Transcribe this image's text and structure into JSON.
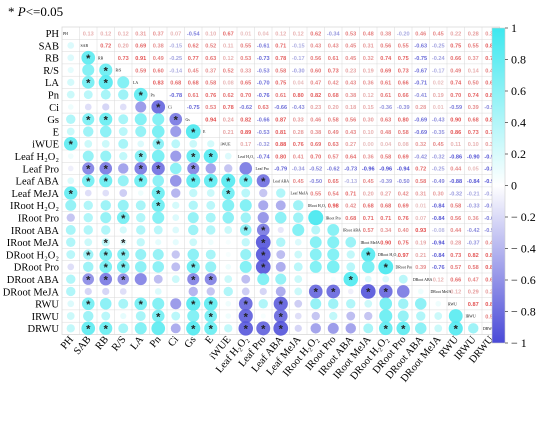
{
  "note": {
    "star": "*",
    "p": "P",
    "rest": "<=0.05"
  },
  "chart_data": {
    "type": "heatmap",
    "variables": [
      "PH",
      "SAB",
      "RB",
      "R/S",
      "LA",
      "Pn",
      "Ci",
      "Gs",
      "E",
      "iWUE",
      "Leaf H₂O₂",
      "Leaf Pro",
      "Leaf ABA",
      "Leaf MeJA",
      "IRoot H₂O₂",
      "IRoot Pro",
      "IRoot ABA",
      "IRoot MeJA",
      "DRoot H₂O₂",
      "DRoot Pro",
      "DRoot ABA",
      "DRoot MeJA",
      "RWU",
      "IRWU",
      "DRWU"
    ],
    "diag_labels": [
      "PH",
      "SAB",
      "RB",
      "R/S",
      "LA",
      "Pn",
      "Ci",
      "Gs",
      "E",
      "iWUE",
      "Leaf H₂O₂",
      "Leaf Pro",
      "Leaf ABA",
      "Leaf MeJA",
      "IRoot H₂O₂",
      "IRoot Pro",
      "IRoot ABA",
      "IRoot MeJA",
      "DRoot H₂O₂",
      "DRoot Pro",
      "DRoot ABA",
      "DRoot MeJA",
      "RWU",
      "IRWU",
      "DRWU"
    ],
    "upper_values": {
      "0": {
        "1": 0.13,
        "2": 0.12,
        "3": 0.12,
        "4": 0.31,
        "5": 0.37,
        "6": 0.07,
        "7": -0.54,
        "8": 0.1,
        "9": 0.67,
        "10": 0.01,
        "11": 0.04,
        "12": 0.12,
        "13": 0.12,
        "14": 0.62,
        "15": -0.34,
        "16": 0.53,
        "17": 0.48,
        "18": 0.38,
        "19": -0.2,
        "20": 0.46,
        "21": 0.45,
        "22": 0.22,
        "23": 0.28,
        "24": 0.35
      },
      "1": {
        "2": 0.72,
        "3": 0.2,
        "4": 0.69,
        "5": 0.38,
        "6": -0.15,
        "7": 0.62,
        "8": 0.52,
        "9": 0.11,
        "10": 0.55,
        "11": -0.61,
        "12": 0.71,
        "13": -0.15,
        "14": 0.43,
        "15": 0.43,
        "16": 0.45,
        "17": 0.31,
        "18": 0.56,
        "19": 0.55,
        "20": -0.63,
        "21": -0.25,
        "22": 0.75,
        "23": 0.55,
        "24": 0.85
      },
      "2": {
        "3": 0.73,
        "4": 0.91,
        "5": 0.49,
        "6": -0.25,
        "7": 0.77,
        "8": 0.63,
        "9": 0.12,
        "10": 0.53,
        "11": -0.73,
        "12": 0.78,
        "13": -0.17,
        "14": 0.56,
        "15": 0.61,
        "16": 0.45,
        "17": 0.32,
        "18": 0.74,
        "19": 0.75,
        "20": -0.75,
        "21": -0.24,
        "22": 0.66,
        "23": 0.37,
        "24": 0.78
      },
      "3": {
        "4": 0.59,
        "5": 0.6,
        "6": -0.14,
        "7": 0.45,
        "8": 0.37,
        "9": 0.52,
        "10": 0.33,
        "11": -0.53,
        "12": 0.58,
        "13": -0.3,
        "14": 0.6,
        "15": 0.73,
        "16": 0.23,
        "17": 0.19,
        "18": 0.69,
        "19": 0.73,
        "20": -0.67,
        "21": -0.17,
        "22": 0.49,
        "23": 0.14,
        "24": 0.49
      },
      "4": {
        "5": 0.83,
        "6": 0.68,
        "7": 0.68,
        "8": 0.58,
        "9": 0.08,
        "10": 0.65,
        "11": -0.7,
        "12": 0.75,
        "13": 0.04,
        "14": 0.47,
        "15": 0.42,
        "16": 0.43,
        "17": 0.36,
        "18": 0.61,
        "19": 0.66,
        "20": -0.71,
        "21": 0.02,
        "22": 0.74,
        "23": 0.5,
        "24": 0.69
      },
      "5": {
        "6": -0.78,
        "7": 0.61,
        "8": 0.76,
        "9": 0.62,
        "10": 0.7,
        "11": -0.76,
        "12": 0.61,
        "13": 0.8,
        "14": 0.82,
        "15": 0.68,
        "16": 0.38,
        "17": 0.12,
        "18": 0.61,
        "19": 0.66,
        "20": -0.41,
        "21": 0.19,
        "22": 0.7,
        "23": 0.74,
        "24": 0.83
      },
      "6": {
        "7": -0.75,
        "8": 0.53,
        "9": 0.78,
        "10": -0.62,
        "11": 0.63,
        "12": -0.66,
        "13": -0.43,
        "14": 0.23,
        "15": 0.2,
        "16": 0.18,
        "17": 0.15,
        "18": -0.36,
        "19": -0.39,
        "20": 0.28,
        "21": 0.01,
        "22": -0.59,
        "23": 0.39,
        "24": -0.5
      },
      "7": {
        "8": 0.94,
        "9": 0.24,
        "10": 0.82,
        "11": -0.66,
        "12": 0.87,
        "13": 0.33,
        "14": 0.46,
        "15": 0.58,
        "16": 0.56,
        "17": 0.3,
        "18": 0.63,
        "19": 0.8,
        "20": -0.69,
        "21": -0.43,
        "22": 0.9,
        "23": 0.68,
        "24": 0.89
      },
      "8": {
        "9": 0.21,
        "10": 0.89,
        "11": -0.53,
        "12": 0.81,
        "13": 0.28,
        "14": 0.38,
        "15": 0.49,
        "16": 0.43,
        "17": 0.1,
        "18": 0.48,
        "19": 0.58,
        "20": -0.69,
        "21": -0.35,
        "22": 0.86,
        "23": 0.73,
        "24": 0.78
      },
      "9": {
        "10": 0.17,
        "11": -0.32,
        "12": 0.88,
        "13": 0.76,
        "14": 0.69,
        "15": 0.63,
        "16": 0.27,
        "17": 0.0,
        "18": 0.04,
        "19": 0.08,
        "20": 0.32,
        "21": 0.45,
        "22": 0.11,
        "23": 0.1,
        "24": 0.34
      },
      "10": {
        "11": -0.74,
        "12": 0.8,
        "13": 0.41,
        "14": 0.7,
        "15": 0.57,
        "16": 0.64,
        "17": 0.36,
        "18": 0.58,
        "19": 0.69,
        "20": -0.42,
        "21": -0.32,
        "22": -0.86,
        "23": -0.9,
        "24": -0.93
      },
      "11": {
        "12": -0.79,
        "13": -0.34,
        "14": -0.52,
        "15": -0.62,
        "16": -0.73,
        "17": -0.96,
        "18": -0.96,
        "19": -0.94,
        "20": 0.72,
        "21": -0.25,
        "22": 0.44,
        "23": 0.05,
        "24": -0.88
      },
      "12": {
        "13": 0.45,
        "14": -0.5,
        "15": 0.65,
        "16": -0.13,
        "17": 0.45,
        "18": -0.39,
        "19": -0.5,
        "20": 0.58,
        "21": -0.49,
        "22": -0.88,
        "23": -0.84,
        "24": -0.94
      },
      "13": {
        "14": 0.55,
        "15": 0.54,
        "16": 0.71,
        "17": 0.2,
        "18": 0.27,
        "19": 0.42,
        "20": 0.31,
        "21": 0.3,
        "22": -0.32,
        "23": -0.21,
        "24": -0.27
      },
      "14": {
        "15": 0.98,
        "16": 0.42,
        "17": 0.68,
        "18": 0.68,
        "19": 0.69,
        "20": 0.01,
        "21": -0.84,
        "22": 0.58,
        "23": -0.33,
        "24": -0.57
      },
      "15": {
        "16": 0.68,
        "17": 0.71,
        "18": 0.71,
        "19": 0.76,
        "20": 0.07,
        "21": -0.84,
        "22": 0.56,
        "23": 0.36,
        "24": -0.62
      },
      "16": {
        "17": 0.57,
        "18": 0.34,
        "19": 0.4,
        "20": 0.93,
        "21": -0.08,
        "22": 0.44,
        "23": -0.42,
        "24": -0.53
      },
      "17": {
        "18": 0.9,
        "19": 0.75,
        "20": 0.19,
        "21": -0.94,
        "22": 0.28,
        "23": -0.37,
        "24": 0.48
      },
      "18": {
        "19": 0.97,
        "20": 0.21,
        "21": -0.84,
        "22": 0.73,
        "23": 0.82,
        "24": 0.83
      },
      "19": {
        "20": 0.39,
        "21": -0.76,
        "22": 0.57,
        "23": 0.58,
        "24": 0.86
      },
      "20": {
        "21": 0.12,
        "22": 0.66,
        "23": 0.47,
        "24": 0.66
      },
      "21": {
        "22": 0.12,
        "23": 0.29,
        "24": 0.28
      },
      "22": {
        "23": 0.87,
        "24": 0.89
      },
      "23": {
        "24": 0.54
      }
    },
    "lower_values": {
      "1": {
        "0": 0.2
      },
      "2": {
        "0": 0.2,
        "1": 0.85
      },
      "3": {
        "0": 0.15,
        "1": 0.7,
        "2": 0.8
      },
      "4": {
        "0": 0.25,
        "1": 0.75,
        "2": 0.9,
        "3": 0.7
      },
      "5": {
        "0": 0.3,
        "1": 0.4,
        "2": 0.5,
        "3": 0.55,
        "4": 0.85
      },
      "6": {
        "0": 0.1,
        "1": -0.2,
        "2": -0.25,
        "3": -0.2,
        "4": -0.6,
        "5": -0.85
      },
      "7": {
        "0": 0.45,
        "1": 0.7,
        "2": 0.8,
        "3": 0.5,
        "4": 0.7,
        "5": 0.7,
        "6": -0.75
      },
      "8": {
        "0": 0.3,
        "1": 0.55,
        "2": 0.65,
        "3": 0.4,
        "4": 0.6,
        "5": 0.75,
        "6": -0.6,
        "7": 0.95
      },
      "9": {
        "0": 0.85,
        "1": 0.3,
        "2": 0.3,
        "3": 0.5,
        "4": 0.2,
        "5": 0.65,
        "6": 0.4,
        "7": 0.3,
        "8": 0.25
      },
      "10": {
        "0": 0.1,
        "1": 0.6,
        "2": 0.6,
        "3": 0.35,
        "4": 0.7,
        "5": 0.75,
        "6": -0.6,
        "7": 0.85,
        "8": 0.9,
        "9": 0.2
      },
      "11": {
        "0": -0.1,
        "1": -0.7,
        "2": -0.75,
        "3": -0.55,
        "4": -0.75,
        "5": -0.8,
        "6": 0.65,
        "7": -0.7,
        "8": -0.55,
        "9": -0.35,
        "10": -0.75
      },
      "12": {
        "0": 0.2,
        "1": 0.75,
        "2": 0.8,
        "3": 0.6,
        "4": 0.8,
        "5": 0.65,
        "6": -0.65,
        "7": 0.88,
        "8": 0.85,
        "9": 0.9,
        "10": 0.8,
        "11": -0.8
      },
      "13": {
        "0": 0.82,
        "1": -0.2,
        "2": -0.2,
        "3": -0.3,
        "4": 0.1,
        "5": 0.8,
        "6": -0.45,
        "7": 0.35,
        "8": 0.3,
        "9": 0.78,
        "10": 0.4,
        "11": -0.35,
        "12": 0.45
      },
      "14": {
        "0": 0.6,
        "1": 0.45,
        "2": 0.55,
        "3": 0.6,
        "4": 0.5,
        "5": 0.8,
        "6": 0.25,
        "7": 0.45,
        "8": 0.4,
        "9": 0.7,
        "10": 0.7,
        "11": -0.52,
        "12": -0.5,
        "13": 0.55
      },
      "15": {
        "0": -0.35,
        "1": 0.45,
        "2": 0.6,
        "3": 0.75,
        "4": 0.45,
        "5": 0.7,
        "6": 0.2,
        "7": 0.6,
        "8": 0.5,
        "9": 0.65,
        "10": 0.55,
        "11": -0.62,
        "12": 0.65,
        "13": 0.55,
        "14": 0.98
      },
      "16": {
        "0": 0.5,
        "1": 0.45,
        "2": 0.45,
        "3": 0.25,
        "4": 0.45,
        "5": 0.4,
        "6": 0.2,
        "7": 0.55,
        "8": 0.45,
        "9": 0.3,
        "10": 0.65,
        "11": -0.75,
        "12": -0.15,
        "13": 0.7,
        "14": 0.42,
        "15": 0.68
      },
      "17": {
        "0": 0.45,
        "1": 0.3,
        "2": 0.35,
        "3": 0.2,
        "4": 0.35,
        "5": 0.15,
        "6": 0.15,
        "7": 0.3,
        "8": 0.1,
        "9": 0.05,
        "10": 0.35,
        "11": -0.95,
        "12": 0.45,
        "13": 0.2,
        "14": 0.68,
        "15": 0.7,
        "16": 0.57
      },
      "18": {
        "0": 0.4,
        "1": 0.55,
        "2": 0.75,
        "3": 0.7,
        "4": 0.6,
        "5": 0.6,
        "6": -0.35,
        "7": 0.65,
        "8": 0.5,
        "9": 0.05,
        "10": 0.6,
        "11": -0.95,
        "12": -0.4,
        "13": 0.3,
        "14": 0.68,
        "15": 0.7,
        "16": 0.35,
        "17": 0.9
      },
      "19": {
        "0": -0.2,
        "1": 0.55,
        "2": 0.75,
        "3": 0.75,
        "4": 0.65,
        "5": 0.65,
        "6": -0.4,
        "7": 0.8,
        "8": 0.6,
        "9": 0.1,
        "10": 0.7,
        "11": -0.95,
        "12": -0.5,
        "13": 0.4,
        "14": 0.7,
        "15": 0.75,
        "16": 0.4,
        "17": 0.75,
        "18": 0.97
      },
      "20": {
        "0": 0.45,
        "1": -0.65,
        "2": -0.75,
        "3": -0.65,
        "4": -0.7,
        "5": -0.4,
        "6": 0.3,
        "7": -0.7,
        "8": -0.7,
        "9": 0.3,
        "10": -0.4,
        "11": 0.7,
        "12": 0.6,
        "13": 0.3,
        "14": 0.0,
        "15": 0.05,
        "16": 0.93,
        "17": 0.2,
        "18": 0.2,
        "19": 0.4
      },
      "21": {
        "0": 0.45,
        "1": -0.25,
        "2": -0.25,
        "3": -0.2,
        "4": 0.0,
        "5": 0.2,
        "6": 0.0,
        "7": -0.45,
        "8": -0.35,
        "9": 0.45,
        "10": -0.3,
        "11": -0.25,
        "12": -0.5,
        "13": 0.3,
        "14": -0.85,
        "15": -0.85,
        "16": -0.1,
        "17": -0.95,
        "18": -0.85,
        "19": -0.75,
        "20": 0.1
      },
      "22": {
        "0": 0.2,
        "1": 0.75,
        "2": 0.65,
        "3": 0.5,
        "4": 0.75,
        "5": 0.7,
        "6": -0.6,
        "7": 0.9,
        "8": 0.85,
        "9": 0.1,
        "10": -0.85,
        "11": 0.45,
        "12": -0.9,
        "13": -0.3,
        "14": 0.6,
        "15": 0.55,
        "16": 0.45,
        "17": 0.3,
        "18": 0.75,
        "19": 0.55,
        "20": 0.65,
        "21": 0.1
      },
      "23": {
        "0": 0.3,
        "1": 0.55,
        "2": 0.4,
        "3": 0.15,
        "4": 0.5,
        "5": 0.75,
        "6": 0.4,
        "7": 0.7,
        "8": 0.75,
        "9": 0.1,
        "10": -0.9,
        "11": 0.05,
        "12": -0.85,
        "13": -0.2,
        "14": -0.35,
        "15": 0.35,
        "16": -0.4,
        "17": -0.35,
        "18": 0.8,
        "19": 0.6,
        "20": 0.45,
        "21": 0.3,
        "22": 0.87
      },
      "24": {
        "0": 0.35,
        "1": 0.85,
        "2": 0.8,
        "3": 0.5,
        "4": 0.7,
        "5": 0.85,
        "6": -0.5,
        "7": 0.9,
        "8": 0.8,
        "9": 0.35,
        "10": -0.93,
        "11": -0.88,
        "12": -0.95,
        "13": -0.25,
        "14": -0.55,
        "15": -0.6,
        "16": -0.55,
        "17": 0.5,
        "18": 0.85,
        "19": 0.85,
        "20": 0.65,
        "21": 0.3,
        "22": 0.9,
        "23": 0.55
      }
    },
    "significant": [
      [
        2,
        1
      ],
      [
        3,
        2
      ],
      [
        4,
        1
      ],
      [
        4,
        2
      ],
      [
        5,
        4
      ],
      [
        6,
        5
      ],
      [
        7,
        1
      ],
      [
        7,
        2
      ],
      [
        7,
        6
      ],
      [
        8,
        7
      ],
      [
        9,
        0
      ],
      [
        9,
        5
      ],
      [
        10,
        4
      ],
      [
        10,
        7
      ],
      [
        10,
        8
      ],
      [
        11,
        1
      ],
      [
        11,
        2
      ],
      [
        11,
        4
      ],
      [
        11,
        5
      ],
      [
        11,
        7
      ],
      [
        12,
        1
      ],
      [
        12,
        2
      ],
      [
        12,
        4
      ],
      [
        12,
        7
      ],
      [
        12,
        8
      ],
      [
        12,
        9
      ],
      [
        12,
        10
      ],
      [
        12,
        11
      ],
      [
        13,
        0
      ],
      [
        13,
        5
      ],
      [
        13,
        9
      ],
      [
        14,
        5
      ],
      [
        15,
        3
      ],
      [
        16,
        10
      ],
      [
        16,
        11
      ],
      [
        17,
        2
      ],
      [
        17,
        3
      ],
      [
        17,
        11
      ],
      [
        18,
        1
      ],
      [
        18,
        2
      ],
      [
        18,
        3
      ],
      [
        18,
        11
      ],
      [
        18,
        17
      ],
      [
        19,
        2
      ],
      [
        19,
        3
      ],
      [
        19,
        7
      ],
      [
        19,
        11
      ],
      [
        19,
        18
      ],
      [
        20,
        1
      ],
      [
        20,
        2
      ],
      [
        20,
        3
      ],
      [
        20,
        7
      ],
      [
        20,
        8
      ],
      [
        20,
        16
      ],
      [
        21,
        14
      ],
      [
        21,
        15
      ],
      [
        21,
        17
      ],
      [
        21,
        18
      ],
      [
        22,
        1
      ],
      [
        22,
        4
      ],
      [
        22,
        7
      ],
      [
        22,
        8
      ],
      [
        22,
        10
      ],
      [
        22,
        12
      ],
      [
        23,
        5
      ],
      [
        23,
        8
      ],
      [
        23,
        10
      ],
      [
        23,
        12
      ],
      [
        24,
        1
      ],
      [
        24,
        2
      ],
      [
        24,
        7
      ],
      [
        24,
        8
      ],
      [
        24,
        10
      ],
      [
        24,
        11
      ],
      [
        24,
        12
      ],
      [
        24,
        18
      ],
      [
        24,
        19
      ],
      [
        24,
        22
      ]
    ],
    "colorbar": {
      "range": [
        -1,
        1
      ],
      "ticks": [
        1,
        0.8,
        0.6,
        0.4,
        0.2,
        0,
        -0.2,
        -0.4,
        -0.6,
        -0.8,
        -1
      ],
      "tick_labels": [
        "1",
        "0.8",
        "0.6",
        "0.4",
        "0.2",
        "0",
        "− 0.2",
        "− 0.4",
        "− 0.6",
        "− 0.8",
        "− 1"
      ]
    },
    "colors": {
      "positive": "#3ee8ef",
      "negative": "#4a4ad8",
      "neutral": "#ffffff",
      "grid": "#d9d9d9",
      "star": "#222222"
    }
  }
}
